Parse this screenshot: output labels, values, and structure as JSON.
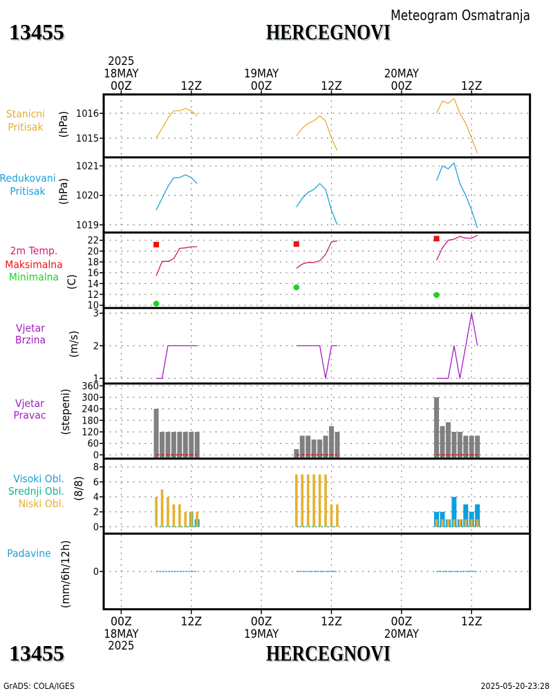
{
  "header": {
    "station_id": "13455",
    "station_name": "HERCEGNOVI",
    "title": "Meteogram Osmatranja"
  },
  "footer": {
    "station_id": "13455",
    "station_name": "HERCEGNOVI",
    "credit": "GrADS: COLA/IGES",
    "timestamp": "2025-05-20-23:28"
  },
  "time_axis": {
    "xlim": [
      "17MAY 21Z",
      "20MAY 22Z"
    ],
    "ticks": [
      {
        "time": "18MAY 00Z",
        "label": "00Z",
        "date": "18MAY",
        "year": "2025"
      },
      {
        "time": "18MAY 12Z",
        "label": "12Z"
      },
      {
        "time": "19MAY 00Z",
        "label": "00Z",
        "date": "19MAY"
      },
      {
        "time": "19MAY 12Z",
        "label": "12Z"
      },
      {
        "time": "20MAY 00Z",
        "label": "00Z",
        "date": "20MAY"
      },
      {
        "time": "20MAY 12Z",
        "label": "12Z"
      }
    ]
  },
  "chart_data": [
    {
      "type": "line",
      "title": "Stanicni Pritisak",
      "labels": [
        {
          "text": "Stanicni",
          "color": "#e6ac30"
        },
        {
          "text": "Pritisak",
          "color": "#e6ac30"
        }
      ],
      "ylabel": "(hPa)",
      "ylim": [
        1014.23,
        1016.76
      ],
      "yticks": [
        1015,
        1016
      ],
      "grid": true,
      "x": [
        "18MAY 06Z",
        "18MAY 07Z",
        "18MAY 08Z",
        "18MAY 09Z",
        "18MAY 10Z",
        "18MAY 11Z",
        "18MAY 12Z",
        "18MAY 13Z",
        "19MAY 06Z",
        "19MAY 07Z",
        "19MAY 08Z",
        "19MAY 09Z",
        "19MAY 10Z",
        "19MAY 11Z",
        "19MAY 12Z",
        "19MAY 13Z",
        "20MAY 06Z",
        "20MAY 07Z",
        "20MAY 08Z",
        "20MAY 09Z",
        "20MAY 10Z",
        "20MAY 11Z",
        "20MAY 12Z",
        "20MAY 13Z"
      ],
      "series": [
        {
          "name": "Stanicni Pritisak",
          "kind": "line",
          "color": "#e6ac30",
          "values": [
            1015.0,
            1015.4,
            1015.8,
            1016.1,
            1016.1,
            1016.2,
            1016.1,
            1015.9,
            1015.1,
            1015.4,
            1015.6,
            1015.7,
            1015.9,
            1015.7,
            1015.0,
            1014.5,
            1016.0,
            1016.5,
            1016.4,
            1016.6,
            1016.0,
            1015.6,
            1015.0,
            1014.4
          ]
        }
      ]
    },
    {
      "type": "line",
      "title": "Redukovani Pritisak",
      "labels": [
        {
          "text": "Redukovani",
          "color": "#18a0d8"
        },
        {
          "text": "Pritisak",
          "color": "#18a0d8"
        }
      ],
      "ylabel": "(hPa)",
      "ylim": [
        1018.74,
        1021.29
      ],
      "yticks": [
        1019,
        1020,
        1021
      ],
      "grid": true,
      "x": [
        "18MAY 06Z",
        "18MAY 07Z",
        "18MAY 08Z",
        "18MAY 09Z",
        "18MAY 10Z",
        "18MAY 11Z",
        "18MAY 12Z",
        "18MAY 13Z",
        "19MAY 06Z",
        "19MAY 07Z",
        "19MAY 08Z",
        "19MAY 09Z",
        "19MAY 10Z",
        "19MAY 11Z",
        "19MAY 12Z",
        "19MAY 13Z",
        "20MAY 06Z",
        "20MAY 07Z",
        "20MAY 08Z",
        "20MAY 09Z",
        "20MAY 10Z",
        "20MAY 11Z",
        "20MAY 12Z",
        "20MAY 13Z"
      ],
      "series": [
        {
          "name": "Redukovani Pritisak",
          "kind": "line",
          "color": "#18a0d8",
          "values": [
            1019.5,
            1019.9,
            1020.3,
            1020.6,
            1020.6,
            1020.7,
            1020.6,
            1020.4,
            1019.6,
            1019.9,
            1020.1,
            1020.2,
            1020.4,
            1020.2,
            1019.5,
            1019.0,
            1020.5,
            1021.0,
            1020.9,
            1021.1,
            1020.4,
            1020.0,
            1019.5,
            1018.9
          ]
        }
      ]
    },
    {
      "type": "line",
      "title": "2m Temp. / Maksimalna / Minimalna",
      "labels": [
        {
          "text": "2m Temp.",
          "color": "#d01e78"
        },
        {
          "text": "Maksimalna",
          "color": "#ee1111"
        },
        {
          "text": "Minimalna",
          "color": "#22d022"
        }
      ],
      "ylabel": "(C)",
      "ylim": [
        9.49,
        23.43
      ],
      "yticks": [
        10,
        12,
        14,
        16,
        18,
        20,
        22
      ],
      "grid": true,
      "x": [
        "18MAY 06Z",
        "18MAY 07Z",
        "18MAY 08Z",
        "18MAY 09Z",
        "18MAY 10Z",
        "18MAY 11Z",
        "18MAY 12Z",
        "18MAY 13Z",
        "19MAY 06Z",
        "19MAY 07Z",
        "19MAY 08Z",
        "19MAY 09Z",
        "19MAY 10Z",
        "19MAY 11Z",
        "19MAY 12Z",
        "19MAY 13Z",
        "20MAY 06Z",
        "20MAY 07Z",
        "20MAY 08Z",
        "20MAY 09Z",
        "20MAY 10Z",
        "20MAY 11Z",
        "20MAY 12Z",
        "20MAY 13Z"
      ],
      "series": [
        {
          "name": "2m Temp.",
          "kind": "line",
          "color": "#c8186e",
          "values": [
            15.4,
            18.1,
            18.1,
            18.6,
            20.5,
            20.6,
            20.8,
            20.8,
            16.8,
            17.6,
            17.9,
            17.9,
            18.2,
            19.4,
            21.7,
            21.9,
            18.3,
            20.6,
            22.0,
            22.2,
            22.7,
            22.4,
            22.4,
            22.9
          ]
        },
        {
          "name": "Maksimalna",
          "kind": "square",
          "color": "#ee1111",
          "points": [
            {
              "x": "18MAY 06Z",
              "y": 21.2
            },
            {
              "x": "19MAY 06Z",
              "y": 21.3
            },
            {
              "x": "20MAY 06Z",
              "y": 22.3
            }
          ]
        },
        {
          "name": "Minimalna",
          "kind": "circle",
          "color": "#22d022",
          "points": [
            {
              "x": "18MAY 06Z",
              "y": 10.3
            },
            {
              "x": "19MAY 06Z",
              "y": 13.3
            },
            {
              "x": "20MAY 06Z",
              "y": 11.9
            }
          ]
        }
      ]
    },
    {
      "type": "line",
      "title": "Vjetar Brzina",
      "labels": [
        {
          "text": "Vjetar",
          "color": "#a01cc0"
        },
        {
          "text": "Brzina",
          "color": "#a01cc0"
        }
      ],
      "ylabel": "(m/s)",
      "ylim": [
        0.84,
        3.16
      ],
      "yticks": [
        1,
        2,
        3
      ],
      "grid": true,
      "x": [
        "18MAY 06Z",
        "18MAY 07Z",
        "18MAY 08Z",
        "18MAY 09Z",
        "18MAY 10Z",
        "18MAY 11Z",
        "18MAY 12Z",
        "18MAY 13Z",
        "19MAY 06Z",
        "19MAY 07Z",
        "19MAY 08Z",
        "19MAY 09Z",
        "19MAY 10Z",
        "19MAY 11Z",
        "19MAY 12Z",
        "19MAY 13Z",
        "20MAY 06Z",
        "20MAY 07Z",
        "20MAY 08Z",
        "20MAY 09Z",
        "20MAY 10Z",
        "20MAY 11Z",
        "20MAY 12Z",
        "20MAY 13Z"
      ],
      "series": [
        {
          "name": "Vjetar Brzina",
          "kind": "line",
          "color": "#a01cc0",
          "values": [
            1,
            1,
            2,
            2,
            2,
            2,
            2,
            2,
            2,
            2,
            2,
            2,
            2,
            1,
            2,
            2,
            1,
            1,
            1,
            2,
            1,
            2,
            3,
            2
          ]
        }
      ]
    },
    {
      "type": "bar",
      "title": "Vjetar Pravac",
      "labels": [
        {
          "text": "Vjetar",
          "color": "#a01cc0"
        },
        {
          "text": "Pravac",
          "color": "#a01cc0"
        }
      ],
      "ylabel": "(stepeni)",
      "ylim": [
        -19.4,
        371.9
      ],
      "yticks": [
        0,
        60,
        120,
        180,
        240,
        300,
        360
      ],
      "grid": true,
      "x": [
        "18MAY 06Z",
        "18MAY 07Z",
        "18MAY 08Z",
        "18MAY 09Z",
        "18MAY 10Z",
        "18MAY 11Z",
        "18MAY 12Z",
        "18MAY 13Z",
        "19MAY 06Z",
        "19MAY 07Z",
        "19MAY 08Z",
        "19MAY 09Z",
        "19MAY 10Z",
        "19MAY 11Z",
        "19MAY 12Z",
        "19MAY 13Z",
        "20MAY 06Z",
        "20MAY 07Z",
        "20MAY 08Z",
        "20MAY 09Z",
        "20MAY 10Z",
        "20MAY 11Z",
        "20MAY 12Z",
        "20MAY 13Z"
      ],
      "series": [
        {
          "name": "Vjetar Pravac",
          "kind": "bar",
          "color": "#808080",
          "values": [
            240,
            120,
            120,
            120,
            120,
            120,
            120,
            120,
            30,
            100,
            100,
            80,
            80,
            100,
            150,
            120,
            300,
            150,
            170,
            120,
            120,
            100,
            100,
            100
          ]
        },
        {
          "name": "baseline",
          "kind": "dash",
          "color": "#e01010",
          "values": [
            0,
            0,
            0,
            0,
            0,
            0,
            0,
            0,
            0,
            0,
            0,
            0,
            0,
            0,
            0,
            0,
            0,
            0,
            0,
            0,
            0,
            0,
            0,
            0
          ]
        }
      ]
    },
    {
      "type": "bar",
      "title": "Visoki / Srednji / Niski Obl.",
      "labels": [
        {
          "text": "Visoki Obl.",
          "color": "#18a0d8"
        },
        {
          "text": "Srednji Obl.",
          "color": "#10b890"
        },
        {
          "text": "Niski Obl.",
          "color": "#e6b030"
        }
      ],
      "ylabel": "(8/8)",
      "ylim": [
        -0.92,
        9.11
      ],
      "yticks": [
        0,
        2,
        4,
        6,
        8
      ],
      "grid": true,
      "x": [
        "18MAY 06Z",
        "18MAY 07Z",
        "18MAY 08Z",
        "18MAY 09Z",
        "18MAY 10Z",
        "18MAY 11Z",
        "18MAY 12Z",
        "18MAY 13Z",
        "19MAY 06Z",
        "19MAY 07Z",
        "19MAY 08Z",
        "19MAY 09Z",
        "19MAY 10Z",
        "19MAY 11Z",
        "19MAY 12Z",
        "19MAY 13Z",
        "20MAY 06Z",
        "20MAY 07Z",
        "20MAY 08Z",
        "20MAY 09Z",
        "20MAY 10Z",
        "20MAY 11Z",
        "20MAY 12Z",
        "20MAY 13Z"
      ],
      "series": [
        {
          "name": "Visoki Obl.",
          "kind": "bar",
          "color": "#0aa0e0",
          "values": [
            0,
            0,
            0,
            0,
            0,
            0,
            0,
            1,
            0,
            0,
            0,
            0,
            0,
            0,
            0,
            0,
            2,
            2,
            1,
            4,
            1,
            3,
            2,
            3
          ]
        },
        {
          "name": "Srednji Obl.",
          "kind": "bar",
          "color": "#10b8a0",
          "values": [
            0,
            0,
            0,
            0,
            0,
            0,
            2,
            0,
            0,
            0,
            0,
            0,
            0,
            0,
            0,
            0,
            0,
            0,
            0,
            0,
            0,
            0,
            0,
            0
          ]
        },
        {
          "name": "Niski Obl.",
          "kind": "bar",
          "color": "#e6b030",
          "values": [
            4,
            5,
            4,
            3,
            3,
            2,
            2,
            2,
            7,
            7,
            7,
            7,
            7,
            7,
            3,
            3,
            1,
            1,
            1,
            1,
            1,
            1,
            1,
            1
          ]
        },
        {
          "name": "baseline",
          "kind": "dash",
          "color": "#10b0b0",
          "values": [
            0,
            0,
            0,
            0,
            0,
            0,
            0,
            0,
            0,
            0,
            0,
            0,
            0,
            0,
            0,
            0,
            0,
            0,
            0,
            0,
            0,
            0,
            0,
            0
          ]
        }
      ]
    },
    {
      "type": "line",
      "title": "Padavine",
      "labels": [
        {
          "text": "Padavine",
          "color": "#20a0d8"
        }
      ],
      "ylabel": "(mm/6h/12h)",
      "ylim": [
        -1,
        1
      ],
      "yticks": [
        0
      ],
      "grid": true,
      "x": [
        "18MAY 06Z",
        "18MAY 07Z",
        "18MAY 08Z",
        "18MAY 09Z",
        "18MAY 10Z",
        "18MAY 11Z",
        "18MAY 12Z",
        "18MAY 13Z",
        "19MAY 06Z",
        "19MAY 07Z",
        "19MAY 08Z",
        "19MAY 09Z",
        "19MAY 10Z",
        "19MAY 11Z",
        "19MAY 12Z",
        "19MAY 13Z",
        "20MAY 06Z",
        "20MAY 07Z",
        "20MAY 08Z",
        "20MAY 09Z",
        "20MAY 10Z",
        "20MAY 11Z",
        "20MAY 12Z",
        "20MAY 13Z"
      ],
      "series": [
        {
          "name": "Padavine",
          "kind": "dash",
          "color": "#20a0d8",
          "values": [
            0,
            0,
            0,
            0,
            0,
            0,
            0,
            0,
            0,
            0,
            0,
            0,
            0,
            0,
            0,
            0,
            0,
            0,
            0,
            0,
            0,
            0,
            0,
            0
          ]
        }
      ]
    }
  ]
}
